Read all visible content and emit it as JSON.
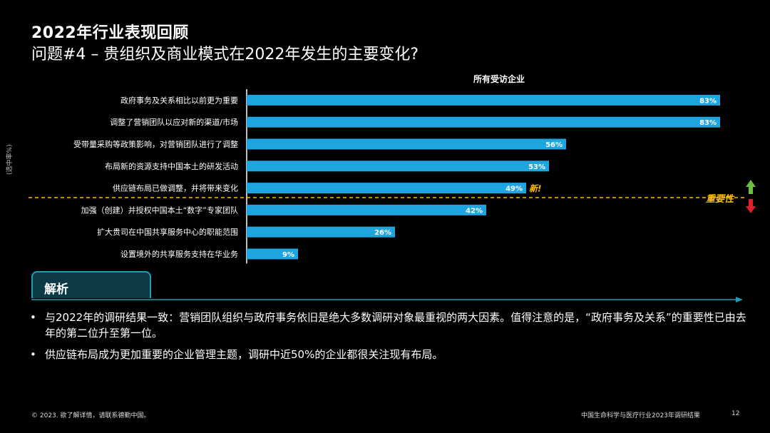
{
  "header": {
    "title": "2022年行业表现回顾",
    "subtitle": "问题#4 – 贵组织及商业模式在2022年发生的主要变化?"
  },
  "side_note": "(选中率%)",
  "chart_data": {
    "type": "bar",
    "orientation": "horizontal",
    "title": "所有受访企业",
    "categories": [
      "政府事务及关系相比以前更为重要",
      "调整了营销团队以应对新的渠道/市场",
      "受带量采购等政策影响，对营销团队进行了调整",
      "布局新的资源支持中国本土的研发活动",
      "供应链布局已做调整，并将带来变化",
      "加强（创建）并授权中国本土“数字”专家团队",
      "扩大贵司在中国共享服务中心的职能范围",
      "设置境外的共享服务支持在华业务"
    ],
    "values": [
      83,
      83,
      56,
      53,
      49,
      42,
      26,
      9
    ],
    "value_labels": [
      "83%",
      "83%",
      "56%",
      "53%",
      "49%",
      "42%",
      "26%",
      "9%"
    ],
    "xlim": [
      0,
      100
    ],
    "bar_color": "#1ea5e0",
    "new_annotation": {
      "category_index": 4,
      "text": "新!",
      "color": "#ffbf00"
    },
    "importance_divider": {
      "after_index": 4,
      "label": "重要性",
      "color": "#ffbf00",
      "up_color": "#6abf40",
      "down_color": "#e0202b"
    }
  },
  "analysis": {
    "tab_label": "解析",
    "accent": "#1e9db0",
    "bullets": [
      "与2022年的调研结果一致：营销团队组织与政府事务依旧是绝大多数调研对象最重视的两大因素。值得注意的是，“政府事务及关系”的重要性已由去年的第二位升至第一位。",
      "供应链布局成为更加重要的企业管理主题，调研中近50%的企业都很关注现有布局。"
    ]
  },
  "footer": {
    "left": "© 2023. 欲了解详情，请联系德勤中国。",
    "right": "中国生命科学与医疗行业2023年调研结果",
    "page": "12"
  }
}
